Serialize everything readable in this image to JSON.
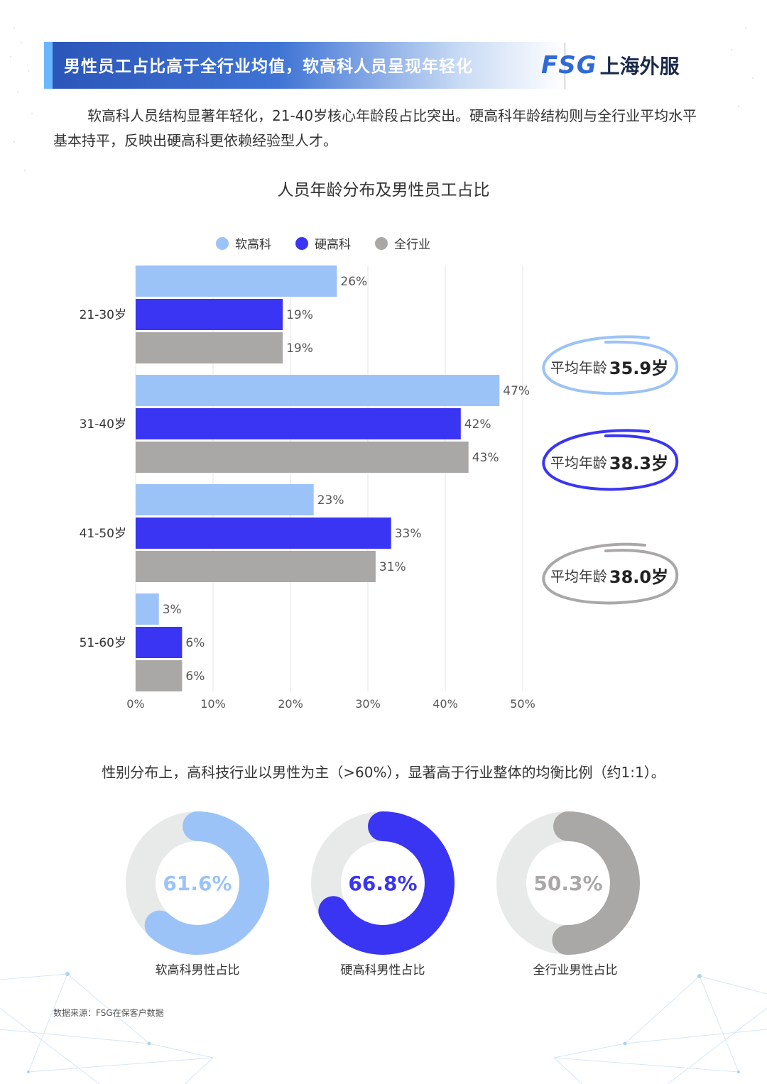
{
  "header": {
    "title": "男性员工占比高于全行业均值，软高科人员呈现年轻化",
    "logo_latin": "FSG",
    "logo_cn": "上海外服"
  },
  "intro": "软高科人员结构显著年轻化，21-40岁核心年龄段占比突出。硬高科年龄结构则与全行业平均水平基本持平，反映出硬高科更依赖经验型人才。",
  "chart_data": [
    {
      "type": "bar",
      "orientation": "horizontal",
      "title": "人员年龄分布及男性员工占比",
      "categories": [
        "21-30岁",
        "31-40岁",
        "41-50岁",
        "51-60岁"
      ],
      "series": [
        {
          "name": "软高科",
          "color": "#9cc3f7",
          "values": [
            26,
            47,
            23,
            3
          ]
        },
        {
          "name": "硬高科",
          "color": "#3a35f2",
          "values": [
            19,
            42,
            33,
            6
          ]
        },
        {
          "name": "全行业",
          "color": "#aaa7a7",
          "values": [
            19,
            43,
            31,
            6
          ]
        }
      ],
      "value_suffix": "%",
      "xlim": [
        0,
        50
      ],
      "xticks": [
        "0%",
        "10%",
        "20%",
        "30%",
        "40%",
        "50%"
      ],
      "grid": true,
      "legend_position": "top"
    },
    {
      "type": "pie",
      "donut": true,
      "items": [
        {
          "label": "软高科男性占比",
          "value": 61.6,
          "display": "61.6%",
          "color": "#9cc3f7"
        },
        {
          "label": "硬高科男性占比",
          "value": 66.8,
          "display": "66.8%",
          "color": "#3a35f2"
        },
        {
          "label": "全行业男性占比",
          "value": 50.3,
          "display": "50.3%",
          "color": "#aaa7a7"
        }
      ],
      "track_color": "#e8e9e9"
    }
  ],
  "avg_age": [
    {
      "label": "平均年龄",
      "value": "35.9岁",
      "color": "#9cc3f7"
    },
    {
      "label": "平均年龄",
      "value": "38.3岁",
      "color": "#3a35f2"
    },
    {
      "label": "平均年龄",
      "value": "38.0岁",
      "color": "#aaa7a7"
    }
  ],
  "gender_text": "性别分布上，高科技行业以男性为主（>60%），显著高于行业整体的均衡比例（约1:1）。",
  "source": "数据来源：FSG在保客户数据"
}
